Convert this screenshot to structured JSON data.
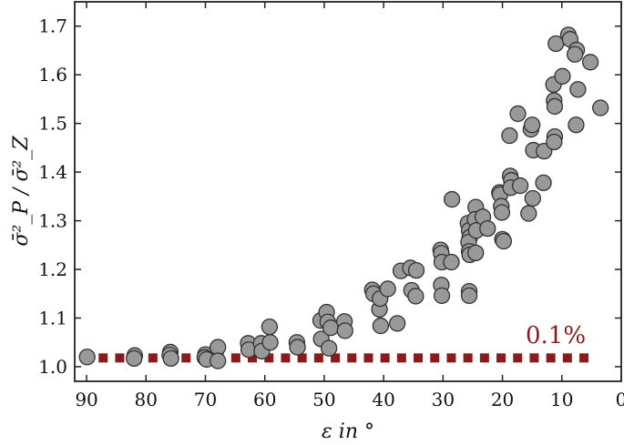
{
  "chart_data": {
    "type": "scatter",
    "title": "",
    "xlabel": "ε in °",
    "ylabel": "σ̄²_P / σ̄²_Z",
    "xlim": [
      92,
      0
    ],
    "ylim": [
      0.97,
      1.75
    ],
    "x_reversed": true,
    "xticks": [
      90,
      80,
      70,
      60,
      50,
      40,
      30,
      20,
      10,
      0
    ],
    "yticks": [
      1.0,
      1.1,
      1.2,
      1.3,
      1.4,
      1.5,
      1.6,
      1.7
    ],
    "ytick_labels": [
      "1.0",
      "1.1",
      "1.2",
      "1.3",
      "1.4",
      "1.5",
      "1.6",
      "1.7"
    ],
    "grid": false,
    "marker_color": "#999999",
    "marker_edge_color": "#333333",
    "series": [
      {
        "points": [
          [
            89.9,
            1.02
          ],
          [
            81.9,
            1.023
          ],
          [
            82.0,
            1.017
          ],
          [
            75.9,
            1.03
          ],
          [
            76.0,
            1.024
          ],
          [
            75.8,
            1.017
          ],
          [
            70.0,
            1.025
          ],
          [
            70.1,
            1.019
          ],
          [
            69.8,
            1.015
          ],
          [
            67.9,
            1.04
          ],
          [
            67.9,
            1.012
          ],
          [
            62.8,
            1.048
          ],
          [
            62.7,
            1.035
          ],
          [
            60.6,
            1.048
          ],
          [
            60.5,
            1.032
          ],
          [
            59.2,
            1.082
          ],
          [
            59.1,
            1.05
          ],
          [
            54.6,
            1.05
          ],
          [
            54.5,
            1.04
          ],
          [
            50.6,
            1.095
          ],
          [
            50.5,
            1.057
          ],
          [
            49.6,
            1.112
          ],
          [
            49.4,
            1.092
          ],
          [
            48.9,
            1.08
          ],
          [
            49.2,
            1.038
          ],
          [
            46.6,
            1.093
          ],
          [
            46.5,
            1.074
          ],
          [
            41.9,
            1.158
          ],
          [
            41.7,
            1.15
          ],
          [
            40.7,
            1.118
          ],
          [
            40.5,
            1.084
          ],
          [
            40.6,
            1.14
          ],
          [
            39.3,
            1.16
          ],
          [
            37.7,
            1.089
          ],
          [
            37.1,
            1.197
          ],
          [
            35.5,
            1.203
          ],
          [
            35.3,
            1.157
          ],
          [
            34.5,
            1.198
          ],
          [
            34.6,
            1.145
          ],
          [
            30.4,
            1.24
          ],
          [
            30.3,
            1.233
          ],
          [
            30.2,
            1.215
          ],
          [
            30.3,
            1.168
          ],
          [
            30.2,
            1.146
          ],
          [
            28.5,
            1.344
          ],
          [
            28.6,
            1.215
          ],
          [
            25.8,
            1.295
          ],
          [
            25.6,
            1.28
          ],
          [
            25.5,
            1.266
          ],
          [
            25.7,
            1.256
          ],
          [
            25.6,
            1.237
          ],
          [
            25.5,
            1.23
          ],
          [
            25.6,
            1.155
          ],
          [
            25.6,
            1.146
          ],
          [
            24.5,
            1.328
          ],
          [
            24.6,
            1.303
          ],
          [
            24.4,
            1.28
          ],
          [
            24.5,
            1.234
          ],
          [
            23.3,
            1.308
          ],
          [
            22.5,
            1.284
          ],
          [
            20.5,
            1.358
          ],
          [
            20.4,
            1.354
          ],
          [
            20.2,
            1.33
          ],
          [
            20.1,
            1.317
          ],
          [
            20.0,
            1.262
          ],
          [
            19.8,
            1.258
          ],
          [
            18.8,
            1.475
          ],
          [
            18.7,
            1.392
          ],
          [
            18.5,
            1.383
          ],
          [
            18.6,
            1.368
          ],
          [
            17.4,
            1.52
          ],
          [
            17.0,
            1.372
          ],
          [
            15.6,
            1.315
          ],
          [
            15.2,
            1.488
          ],
          [
            15.0,
            1.497
          ],
          [
            14.8,
            1.445
          ],
          [
            14.9,
            1.346
          ],
          [
            13.0,
            1.443
          ],
          [
            13.1,
            1.378
          ],
          [
            11.4,
            1.58
          ],
          [
            11.3,
            1.547
          ],
          [
            11.2,
            1.535
          ],
          [
            11.2,
            1.473
          ],
          [
            11.3,
            1.462
          ],
          [
            11.0,
            1.664
          ],
          [
            9.9,
            1.597
          ],
          [
            8.9,
            1.682
          ],
          [
            8.6,
            1.673
          ],
          [
            7.5,
            1.651
          ],
          [
            7.8,
            1.642
          ],
          [
            7.3,
            1.57
          ],
          [
            7.6,
            1.497
          ],
          [
            5.2,
            1.626
          ],
          [
            3.5,
            1.532
          ]
        ]
      }
    ],
    "reference_line": {
      "y": 1.018,
      "x_range": [
        90,
        0
      ],
      "style": "dotted-squares",
      "color": "#8b1a1a",
      "label": "0.1%"
    }
  }
}
